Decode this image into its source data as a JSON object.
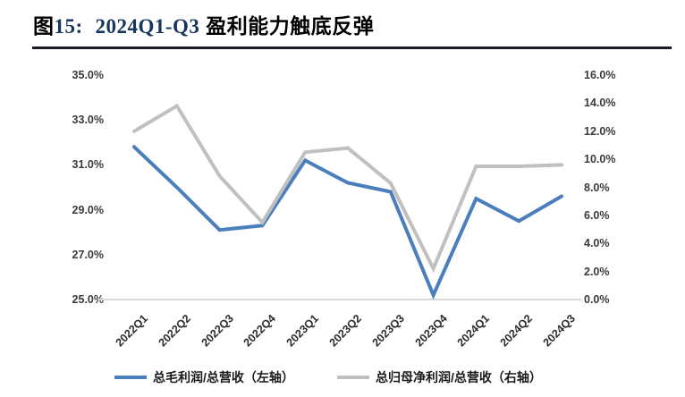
{
  "title": {
    "part1": "图",
    "part2": "15:",
    "part3": "2024Q1-Q3",
    "part4": "盈利能力触底反弹",
    "accent_color": "#17365d"
  },
  "chart_data": {
    "type": "line",
    "title": "图15: 2024Q1-Q3 盈利能力触底反弹",
    "categories": [
      "2022Q1",
      "2022Q2",
      "2022Q3",
      "2022Q4",
      "2023Q1",
      "2023Q2",
      "2023Q3",
      "2023Q4",
      "2024Q1",
      "2024Q2",
      "2024Q3"
    ],
    "series": [
      {
        "name": "总毛利润/总营收（左轴）",
        "axis": "left",
        "color": "#4a7ebd",
        "values": [
          31.8,
          30.0,
          28.1,
          28.3,
          31.2,
          30.2,
          29.8,
          25.2,
          29.5,
          28.5,
          29.6
        ]
      },
      {
        "name": "总归母净利润/总营收（右轴）",
        "axis": "right",
        "color": "#c0c0c0",
        "values": [
          12.0,
          13.8,
          8.8,
          5.5,
          10.5,
          10.8,
          8.3,
          2.2,
          9.5,
          9.5,
          9.6
        ]
      }
    ],
    "axes": {
      "left": {
        "min": 25,
        "max": 35,
        "step": 2,
        "unit": "%",
        "ticks": [
          "35.0%",
          "33.0%",
          "31.0%",
          "29.0%",
          "27.0%",
          "25.0%"
        ]
      },
      "right": {
        "min": 0,
        "max": 16,
        "step": 2,
        "unit": "%",
        "ticks": [
          "16.0%",
          "14.0%",
          "12.0%",
          "10.0%",
          "8.0%",
          "6.0%",
          "4.0%",
          "2.0%",
          "0.0%"
        ]
      }
    },
    "grid": "bottom-baseline-only",
    "baseline_color": "#d9d9d9",
    "legend_position": "bottom"
  }
}
